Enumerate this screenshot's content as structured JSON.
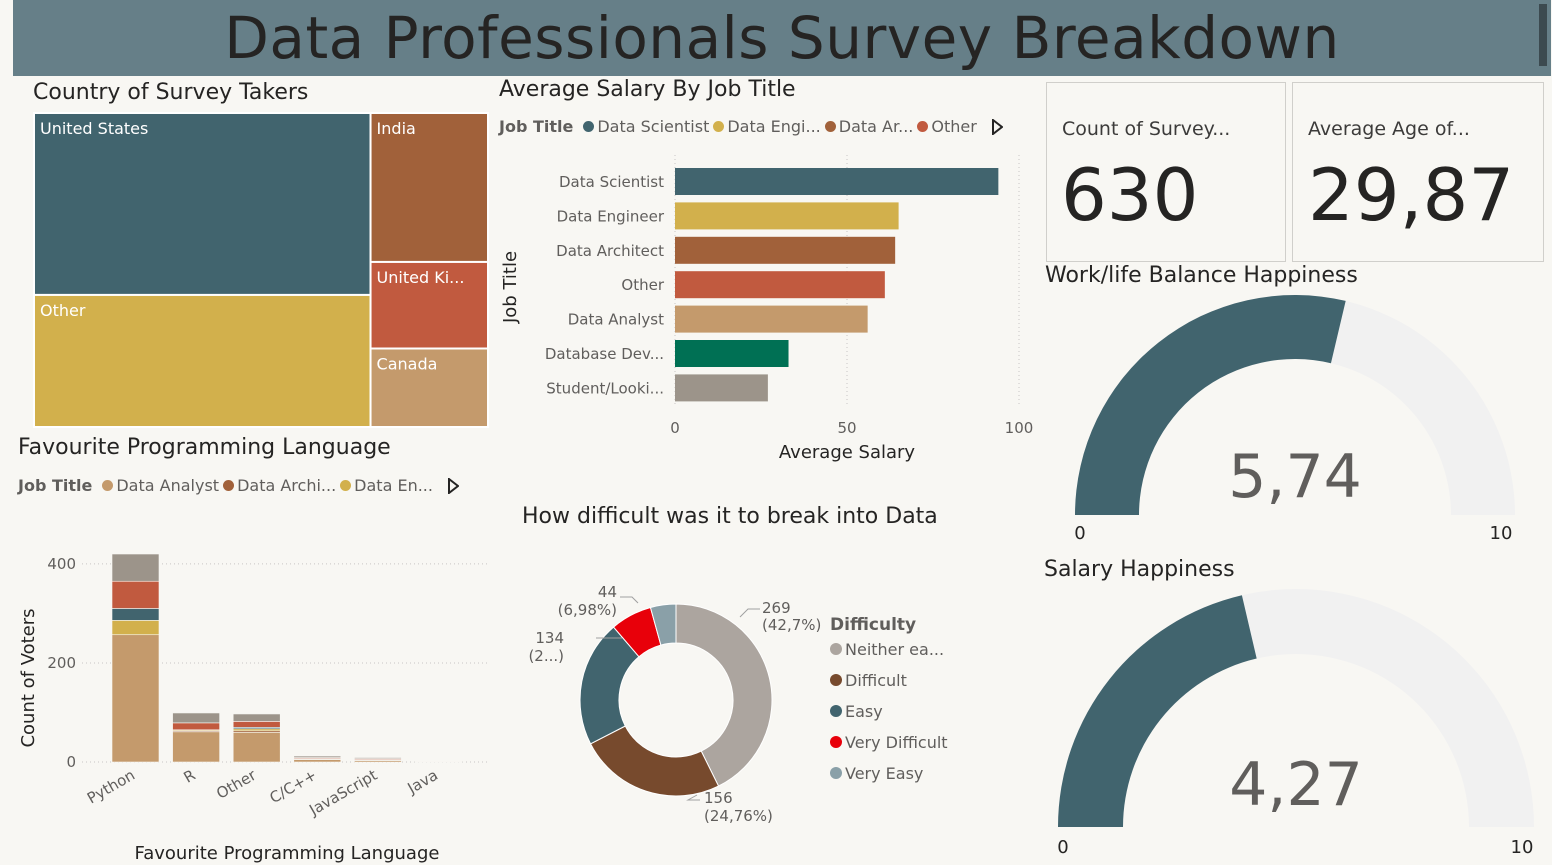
{
  "title": "Data Professionals Survey Breakdown",
  "treemap": {
    "title": "Country of Survey Takers",
    "labels": [
      "United States",
      "India",
      "Other",
      "United Ki...",
      "Canada"
    ]
  },
  "avg_salary": {
    "title": "Average Salary By Job Title",
    "legend_title": "Job Title",
    "legend": [
      "Data Scientist",
      "Data Engi...",
      "Data Ar...",
      "Other"
    ],
    "ylabel": "Job Title",
    "xlabel": "Average Salary",
    "ticks": [
      "0",
      "50",
      "100"
    ]
  },
  "fav_lang": {
    "title": "Favourite Programming Language",
    "legend_title": "Job Title",
    "legend": [
      "Data Analyst",
      "Data Archi...",
      "Data En..."
    ],
    "ylabel": "Count of Voters",
    "xlabel": "Favourite Programming Language",
    "ticks": [
      "0",
      "200",
      "400"
    ]
  },
  "donut": {
    "title": "How difficult was it to break into Data",
    "legend_title": "Difficulty",
    "legend": [
      "Neither ea...",
      "Difficult",
      "Easy",
      "Very Difficult",
      "Very Easy"
    ],
    "labels": [
      {
        "value": "269",
        "pct": "(42,7%)"
      },
      {
        "value": "156",
        "pct": "(24,76%)"
      },
      {
        "value": "134",
        "pct": "(2...)"
      },
      {
        "value": "44",
        "pct": "(6,98%)"
      }
    ]
  },
  "cards": {
    "count_label": "Count of Survey...",
    "count_value": "630",
    "age_label": "Average Age of...",
    "age_value": "29,87"
  },
  "gauge_wlb": {
    "title": "Work/life Balance Happiness",
    "value_text": "5,74",
    "min": "0",
    "max": "10"
  },
  "gauge_salary": {
    "title": "Salary Happiness",
    "value_text": "4,27",
    "min": "0",
    "max": "10"
  },
  "colors": {
    "teal": "#41646e",
    "gold": "#d2b04c",
    "brown": "#a1613a",
    "red": "#c15a3f",
    "tan": "#c49a6c",
    "green": "#007054",
    "gray": "#9c948a",
    "title_bar": "#667f88",
    "donut_neither": "#aca59f",
    "donut_difficult": "#774a2d",
    "donut_easy": "#41646e",
    "donut_very_difficult": "#e8000a",
    "donut_very_easy": "#8aa0a8",
    "gauge_track": "#f1f1f1"
  },
  "chart_data": [
    {
      "type": "treemap",
      "title": "Country of Survey Takers",
      "categories": [
        "United States",
        "Other",
        "India",
        "United Ki...",
        "Canada"
      ],
      "values": [
        259,
        188,
        74,
        43,
        39
      ]
    },
    {
      "type": "bar",
      "orientation": "horizontal",
      "title": "Average Salary By Job Title",
      "categories": [
        "Data Scientist",
        "Data Engineer",
        "Data Architect",
        "Other",
        "Data Analyst",
        "Database Dev...",
        "Student/Looki..."
      ],
      "values": [
        94,
        65,
        64,
        61,
        56,
        33,
        27
      ],
      "xlabel": "Average Salary",
      "ylabel": "Job Title",
      "xlim": [
        0,
        100
      ]
    },
    {
      "type": "bar",
      "stacked": true,
      "title": "Favourite Programming Language",
      "categories": [
        "Python",
        "R",
        "Other",
        "C/C++",
        "JavaScript",
        "Java"
      ],
      "series": [
        {
          "name": "Data Analyst",
          "values": [
            257,
            61,
            60,
            5,
            3,
            1
          ]
        },
        {
          "name": "Data Archi...",
          "values": [
            0,
            2,
            3,
            0,
            1,
            0
          ]
        },
        {
          "name": "Data En...",
          "values": [
            29,
            2,
            4,
            1,
            0,
            0
          ]
        },
        {
          "values": [
            24,
            0,
            3,
            1,
            1,
            0
          ]
        },
        {
          "values": [
            55,
            14,
            12,
            2,
            2,
            1
          ]
        },
        {
          "values": [
            55,
            20,
            15,
            3,
            2,
            1
          ]
        }
      ],
      "xlabel": "Favourite Programming Language",
      "ylabel": "Count of Voters",
      "ylim": [
        0,
        420
      ]
    },
    {
      "type": "donut",
      "title": "How difficult was it to break into Data",
      "categories": [
        "Neither ea...",
        "Difficult",
        "Easy",
        "Very Difficult",
        "Very Easy"
      ],
      "values": [
        269,
        156,
        134,
        44,
        27
      ]
    },
    {
      "type": "gauge",
      "title": "Work/life Balance Happiness",
      "value": 5.74,
      "min": 0,
      "max": 10
    },
    {
      "type": "gauge",
      "title": "Salary Happiness",
      "value": 4.27,
      "min": 0,
      "max": 10
    }
  ]
}
